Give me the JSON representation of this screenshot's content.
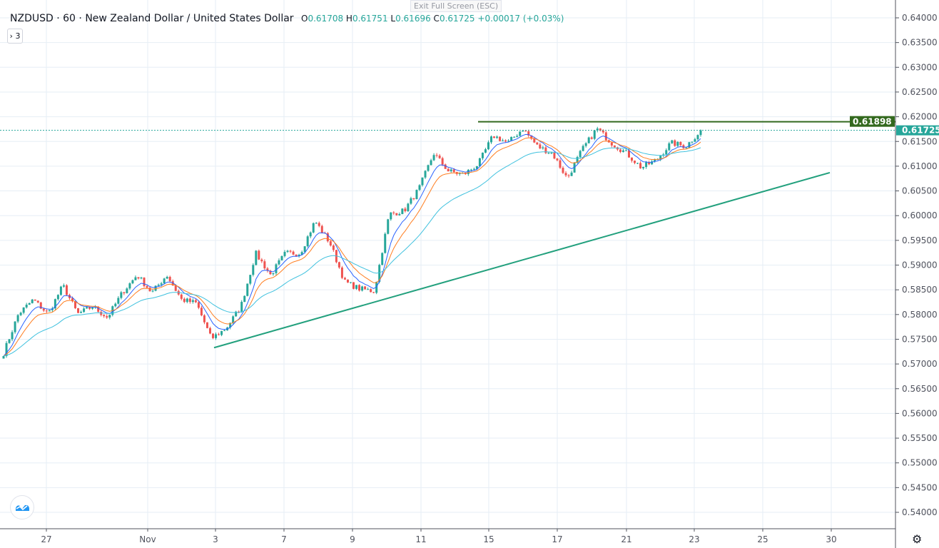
{
  "legend": {
    "symbol": "NZDUSD",
    "interval": "60",
    "description": "New Zealand Dollar / United States Dollar",
    "open_label": "O",
    "open": "0.61708",
    "high_label": "H",
    "high": "0.61751",
    "low_label": "L",
    "low": "0.61696",
    "close_label": "C",
    "close": "0.61725",
    "change": "+0.00017 (+0.03%)"
  },
  "indicators_toggle": "› 3",
  "exit_fullscreen": "Exit Full Screen (ESC)",
  "colors": {
    "up": "#26a69a",
    "down": "#ef5350",
    "grid": "#e6eef5",
    "resistance": "#33691e",
    "trendline": "#22a07d",
    "ma_fast": "#2962ff",
    "ma_mid": "#ff7d1f",
    "ma_slow": "#3fc1de"
  },
  "icons": {
    "logo": "tradingview-logo-icon",
    "settings": "gear-icon"
  },
  "chart_data": {
    "type": "candlestick",
    "y_ticks": [
      "0.64000",
      "0.63500",
      "0.63000",
      "0.62500",
      "0.62000",
      "0.61500",
      "0.61000",
      "0.60500",
      "0.60000",
      "0.59500",
      "0.59000",
      "0.58500",
      "0.58000",
      "0.57500",
      "0.57000",
      "0.56500",
      "0.56000",
      "0.55500",
      "0.55000",
      "0.54500",
      "0.54000"
    ],
    "ylim": [
      0.54,
      0.64
    ],
    "x_ticks": [
      "27",
      "Nov",
      "3",
      "7",
      "9",
      "11",
      "15",
      "17",
      "21",
      "23",
      "25",
      "30"
    ],
    "approx_close_path": [
      0.5722,
      0.5801,
      0.583,
      0.5801,
      0.5859,
      0.5801,
      0.5816,
      0.5794,
      0.5844,
      0.588,
      0.5844,
      0.588,
      0.583,
      0.5823,
      0.5751,
      0.5772,
      0.5816,
      0.5924,
      0.588,
      0.5924,
      0.5924,
      0.5989,
      0.5945,
      0.5866,
      0.5852,
      0.5847,
      0.6003,
      0.601,
      0.6054,
      0.6126,
      0.609,
      0.6083,
      0.6104,
      0.6162,
      0.6147,
      0.6176,
      0.614,
      0.6126,
      0.6075,
      0.6133,
      0.6176,
      0.6147,
      0.6126,
      0.6097,
      0.6112,
      0.6147,
      0.614,
      0.6172
    ],
    "last_price": "0.61725",
    "horizontal_level": "0.61898",
    "trendline": {
      "start_price": 0.5733,
      "end_price": 0.6087
    }
  }
}
